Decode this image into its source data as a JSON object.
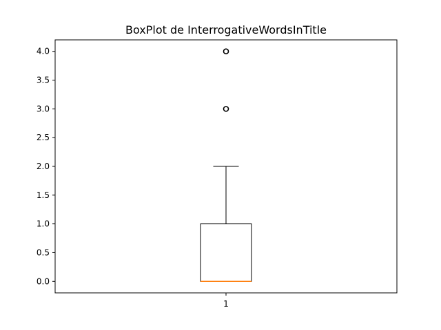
{
  "chart_data": {
    "type": "box",
    "title": "BoxPlot de InterrogativeWordsInTitle",
    "xlabel": "",
    "ylabel": "",
    "categories": [
      "1"
    ],
    "boxes": [
      {
        "category": "1",
        "whisker_low": 0.0,
        "q1": 0.0,
        "median": 0.0,
        "q3": 1.0,
        "whisker_high": 2.0,
        "outliers": [
          3.0,
          4.0
        ]
      }
    ],
    "ylim": [
      -0.2,
      4.2
    ],
    "yticks": [
      0.0,
      0.5,
      1.0,
      1.5,
      2.0,
      2.5,
      3.0,
      3.5,
      4.0
    ],
    "ytick_labels": [
      "0.0",
      "0.5",
      "1.0",
      "1.5",
      "2.0",
      "2.5",
      "3.0",
      "3.5",
      "4.0"
    ],
    "grid": false,
    "colors": {
      "box": "#000000",
      "median": "#ff7f0e",
      "outlier_edge": "#000000"
    }
  }
}
